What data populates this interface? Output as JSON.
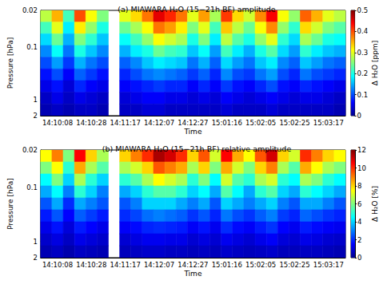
{
  "chart_data": [
    {
      "type": "heatmap",
      "title": "(a) MIAWARA H₂O (15−21h BF) amplitude",
      "x_label": "Time",
      "y_label": "Pressure [hPa]",
      "log": "y",
      "grid": false,
      "categories": [
        null,
        "14:10:08",
        null,
        null,
        "14:10:28",
        null,
        null,
        "14:11:17",
        null,
        null,
        "14:12:07",
        null,
        null,
        "14:12:27",
        null,
        null,
        "15:01:16",
        null,
        null,
        "15:02:05",
        null,
        null,
        "15:02:25",
        null,
        null,
        "15:03:17",
        null
      ],
      "ylim": [
        2,
        0.02
      ],
      "yticks": [
        0.02,
        0.1,
        1,
        2
      ],
      "pressure_edges": [
        0.02,
        0.0334,
        0.0557,
        0.0928,
        0.155,
        0.258,
        0.431,
        0.719,
        1.199,
        2
      ],
      "cells": [
        [
          0.28,
          0.35,
          0.22,
          0.4,
          0.31,
          0.25,
          null,
          0.3,
          0.33,
          0.38,
          0.45,
          0.42,
          0.38,
          0.3,
          0.36,
          0.27,
          0.41,
          0.33,
          0.29,
          0.37,
          0.44,
          0.31,
          0.26,
          0.39,
          0.35,
          0.3,
          0.28
        ],
        [
          0.22,
          0.3,
          0.18,
          0.32,
          0.26,
          0.2,
          null,
          0.24,
          0.27,
          0.31,
          0.38,
          0.36,
          0.32,
          0.25,
          0.3,
          0.22,
          0.34,
          0.28,
          0.24,
          0.31,
          0.37,
          0.26,
          0.21,
          0.33,
          0.29,
          0.25,
          0.23
        ],
        [
          0.17,
          0.24,
          0.15,
          0.25,
          0.21,
          0.16,
          null,
          0.19,
          0.22,
          0.26,
          0.31,
          0.29,
          0.27,
          0.2,
          0.25,
          0.18,
          0.28,
          0.23,
          0.2,
          0.26,
          0.3,
          0.21,
          0.17,
          0.27,
          0.24,
          0.2,
          0.19
        ],
        [
          0.13,
          0.19,
          0.12,
          0.2,
          0.16,
          0.13,
          null,
          0.15,
          0.18,
          0.2,
          0.24,
          0.22,
          0.21,
          0.16,
          0.19,
          0.14,
          0.22,
          0.18,
          0.15,
          0.2,
          0.23,
          0.17,
          0.14,
          0.21,
          0.18,
          0.16,
          0.15
        ],
        [
          0.1,
          0.14,
          0.09,
          0.15,
          0.12,
          0.1,
          null,
          0.11,
          0.13,
          0.16,
          0.18,
          0.17,
          0.16,
          0.12,
          0.15,
          0.11,
          0.17,
          0.14,
          0.12,
          0.16,
          0.18,
          0.13,
          0.11,
          0.16,
          0.14,
          0.12,
          0.11
        ],
        [
          0.07,
          0.1,
          0.06,
          0.11,
          0.09,
          0.07,
          null,
          0.08,
          0.1,
          0.12,
          0.13,
          0.12,
          0.11,
          0.09,
          0.11,
          0.08,
          0.13,
          0.1,
          0.09,
          0.12,
          0.14,
          0.1,
          0.08,
          0.12,
          0.1,
          0.09,
          0.08
        ],
        [
          0.05,
          0.07,
          0.04,
          0.08,
          0.06,
          0.05,
          null,
          0.06,
          0.07,
          0.08,
          0.09,
          0.08,
          0.08,
          0.06,
          0.08,
          0.06,
          0.09,
          0.07,
          0.06,
          0.08,
          0.1,
          0.07,
          0.06,
          0.08,
          0.07,
          0.06,
          0.05
        ],
        [
          0.03,
          0.05,
          0.03,
          0.05,
          0.04,
          0.03,
          null,
          0.04,
          0.05,
          0.06,
          0.06,
          0.05,
          0.05,
          0.04,
          0.05,
          0.04,
          0.06,
          0.05,
          0.04,
          0.05,
          0.06,
          0.05,
          0.04,
          0.05,
          0.05,
          0.04,
          0.03
        ],
        [
          0.02,
          0.03,
          0.02,
          0.03,
          0.03,
          0.02,
          null,
          0.03,
          0.03,
          0.04,
          0.04,
          0.03,
          0.03,
          0.03,
          0.03,
          0.03,
          0.04,
          0.03,
          0.03,
          0.03,
          0.04,
          0.03,
          0.03,
          0.03,
          0.03,
          0.03,
          0.02
        ]
      ],
      "colorbar": {
        "label": "Δ H₂O [ppm]",
        "range": [
          0,
          0.5
        ],
        "ticks": [
          0,
          0.1,
          0.2,
          0.3,
          0.4,
          0.5
        ]
      }
    },
    {
      "type": "heatmap",
      "title": "(b) MIAWARA H₂O (15−21h BF) relative amplitude",
      "x_label": "Time",
      "y_label": "Pressure [hPa]",
      "log": "y",
      "grid": false,
      "categories": [
        null,
        "14:10:08",
        null,
        null,
        "14:10:28",
        null,
        null,
        "14:11:17",
        null,
        null,
        "14:12:07",
        null,
        null,
        "14:12:27",
        null,
        null,
        "15:01:16",
        null,
        null,
        "15:02:05",
        null,
        null,
        "15:02:25",
        null,
        null,
        "15:03:17",
        null
      ],
      "ylim": [
        2,
        0.02
      ],
      "yticks": [
        0.02,
        0.1,
        1,
        2
      ],
      "pressure_edges": [
        0.02,
        0.0334,
        0.0557,
        0.0928,
        0.155,
        0.258,
        0.431,
        0.719,
        1.199,
        2
      ],
      "cells": [
        [
          7.5,
          9.0,
          6.0,
          10.5,
          8.0,
          6.5,
          null,
          8.0,
          9.0,
          10.0,
          11.5,
          11.0,
          10.0,
          8.0,
          9.5,
          7.0,
          10.5,
          8.5,
          7.5,
          9.5,
          11.0,
          8.0,
          7.0,
          10.0,
          9.0,
          8.0,
          7.5
        ],
        [
          6.0,
          7.5,
          5.0,
          8.5,
          6.5,
          5.5,
          null,
          6.5,
          7.0,
          8.0,
          9.5,
          9.0,
          8.5,
          6.5,
          8.0,
          6.0,
          8.5,
          7.0,
          6.0,
          8.0,
          9.0,
          6.5,
          5.5,
          8.5,
          7.5,
          6.5,
          6.0
        ],
        [
          4.5,
          6.0,
          4.0,
          6.5,
          5.0,
          4.0,
          null,
          5.0,
          5.5,
          6.5,
          7.5,
          7.0,
          6.5,
          5.0,
          6.0,
          4.5,
          7.0,
          5.5,
          5.0,
          6.5,
          7.0,
          5.0,
          4.5,
          6.5,
          6.0,
          5.0,
          4.5
        ],
        [
          3.5,
          4.5,
          3.0,
          5.0,
          4.0,
          3.0,
          null,
          3.5,
          4.0,
          5.0,
          5.5,
          5.5,
          5.0,
          4.0,
          4.5,
          3.5,
          5.5,
          4.5,
          3.5,
          5.0,
          5.5,
          4.0,
          3.5,
          5.0,
          4.5,
          4.0,
          3.5
        ],
        [
          2.5,
          3.5,
          2.0,
          3.5,
          3.0,
          2.5,
          null,
          2.5,
          3.0,
          4.0,
          4.0,
          4.0,
          3.5,
          3.0,
          3.5,
          2.5,
          4.0,
          3.5,
          3.0,
          3.5,
          4.0,
          3.0,
          2.5,
          3.5,
          3.5,
          3.0,
          2.5
        ],
        [
          1.8,
          2.5,
          1.5,
          2.6,
          2.2,
          1.8,
          null,
          2.0,
          2.3,
          2.8,
          3.0,
          2.8,
          2.6,
          2.1,
          2.5,
          1.9,
          2.9,
          2.4,
          2.1,
          2.6,
          3.0,
          2.2,
          1.9,
          2.7,
          2.4,
          2.1,
          1.9
        ],
        [
          1.2,
          1.7,
          1.0,
          1.8,
          1.5,
          1.2,
          null,
          1.4,
          1.6,
          1.9,
          2.0,
          1.9,
          1.8,
          1.4,
          1.7,
          1.3,
          2.0,
          1.6,
          1.4,
          1.8,
          2.1,
          1.5,
          1.3,
          1.8,
          1.6,
          1.4,
          1.3
        ],
        [
          0.8,
          1.1,
          0.7,
          1.2,
          1.0,
          0.8,
          null,
          0.9,
          1.1,
          1.3,
          1.3,
          1.2,
          1.2,
          0.9,
          1.1,
          0.9,
          1.3,
          1.1,
          0.9,
          1.2,
          1.4,
          1.0,
          0.9,
          1.2,
          1.1,
          0.9,
          0.8
        ],
        [
          0.5,
          0.7,
          0.4,
          0.7,
          0.6,
          0.5,
          null,
          0.6,
          0.7,
          0.8,
          0.8,
          0.7,
          0.7,
          0.6,
          0.7,
          0.6,
          0.8,
          0.7,
          0.6,
          0.7,
          0.8,
          0.6,
          0.6,
          0.7,
          0.7,
          0.6,
          0.5
        ]
      ],
      "colorbar": {
        "label": "Δ H₂O [%]",
        "range": [
          0,
          12
        ],
        "ticks": [
          0,
          2,
          4,
          6,
          8,
          10,
          12
        ]
      }
    }
  ]
}
